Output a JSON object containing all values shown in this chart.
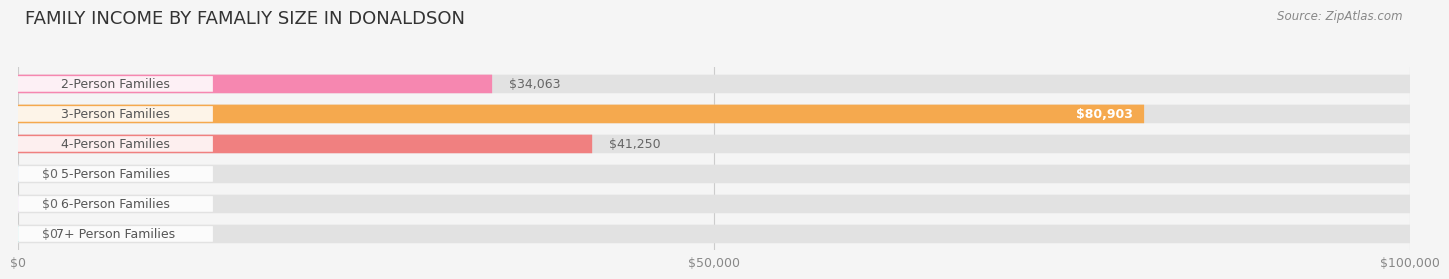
{
  "title": "FAMILY INCOME BY FAMALIY SIZE IN DONALDSON",
  "source": "Source: ZipAtlas.com",
  "categories": [
    "2-Person Families",
    "3-Person Families",
    "4-Person Families",
    "5-Person Families",
    "6-Person Families",
    "7+ Person Families"
  ],
  "values": [
    34063,
    80903,
    41250,
    0,
    0,
    0
  ],
  "bar_colors": [
    "#f687b0",
    "#f5a94e",
    "#f08080",
    "#a8c4e0",
    "#c8a8d8",
    "#7ecdc8"
  ],
  "value_labels": [
    "$34,063",
    "$80,903",
    "$41,250",
    "$0",
    "$0",
    "$0"
  ],
  "value_label_inside": [
    false,
    true,
    false,
    false,
    false,
    false
  ],
  "xlim": [
    0,
    100000
  ],
  "xticks": [
    0,
    50000,
    100000
  ],
  "xtick_labels": [
    "$0",
    "$50,000",
    "$100,000"
  ],
  "bg_color": "#f5f5f5",
  "bar_bg_color": "#e2e2e2",
  "title_fontsize": 13,
  "label_fontsize": 9,
  "value_fontsize": 9,
  "source_fontsize": 8.5
}
